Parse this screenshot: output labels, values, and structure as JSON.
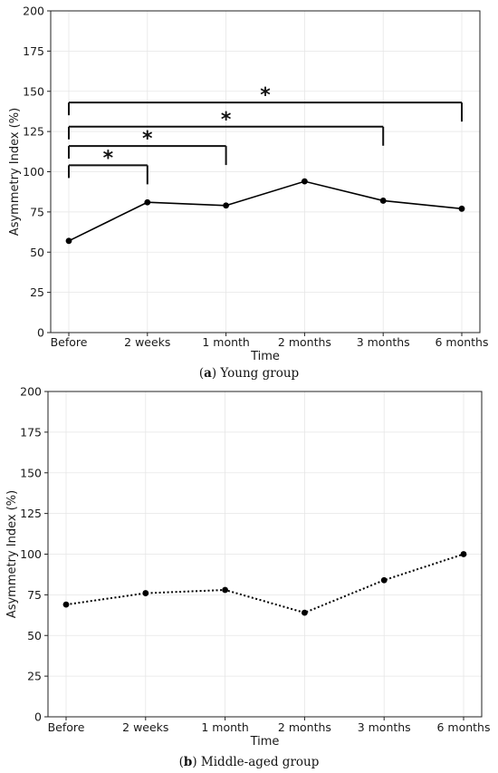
{
  "chart_data": [
    {
      "type": "line",
      "caption_letter": "a",
      "caption_text": "Young group",
      "categories": [
        "Before",
        "2 weeks",
        "1 month",
        "2 months",
        "3 months",
        "6 months"
      ],
      "series": [
        {
          "values": [
            57,
            81,
            79,
            94,
            82,
            77
          ],
          "line_style": "solid",
          "color": "#000000"
        }
      ],
      "xlabel": "Time",
      "ylabel": "Asymmetry Index (%)",
      "ylim": [
        0,
        200
      ],
      "yticks": [
        0,
        25,
        50,
        75,
        100,
        125,
        150,
        175,
        200
      ],
      "grid": true,
      "significance": [
        {
          "from": "Before",
          "to": "2 weeks",
          "level": 104,
          "label": "*"
        },
        {
          "from": "Before",
          "to": "1 month",
          "level": 116,
          "label": "*"
        },
        {
          "from": "Before",
          "to": "3 months",
          "level": 128,
          "label": "*"
        },
        {
          "from": "Before",
          "to": "6 months",
          "level": 143,
          "label": "*"
        }
      ]
    },
    {
      "type": "line",
      "caption_letter": "b",
      "caption_text": "Middle-aged group",
      "categories": [
        "Before",
        "2 weeks",
        "1 month",
        "2 months",
        "3 months",
        "6 months"
      ],
      "series": [
        {
          "values": [
            69,
            76,
            78,
            64,
            84,
            100
          ],
          "line_style": "dotted",
          "color": "#000000"
        }
      ],
      "xlabel": "Time",
      "ylabel": "Asymmetry Index (%)",
      "ylim": [
        0,
        200
      ],
      "yticks": [
        0,
        25,
        50,
        75,
        100,
        125,
        150,
        175,
        200
      ],
      "grid": true,
      "significance": []
    }
  ]
}
